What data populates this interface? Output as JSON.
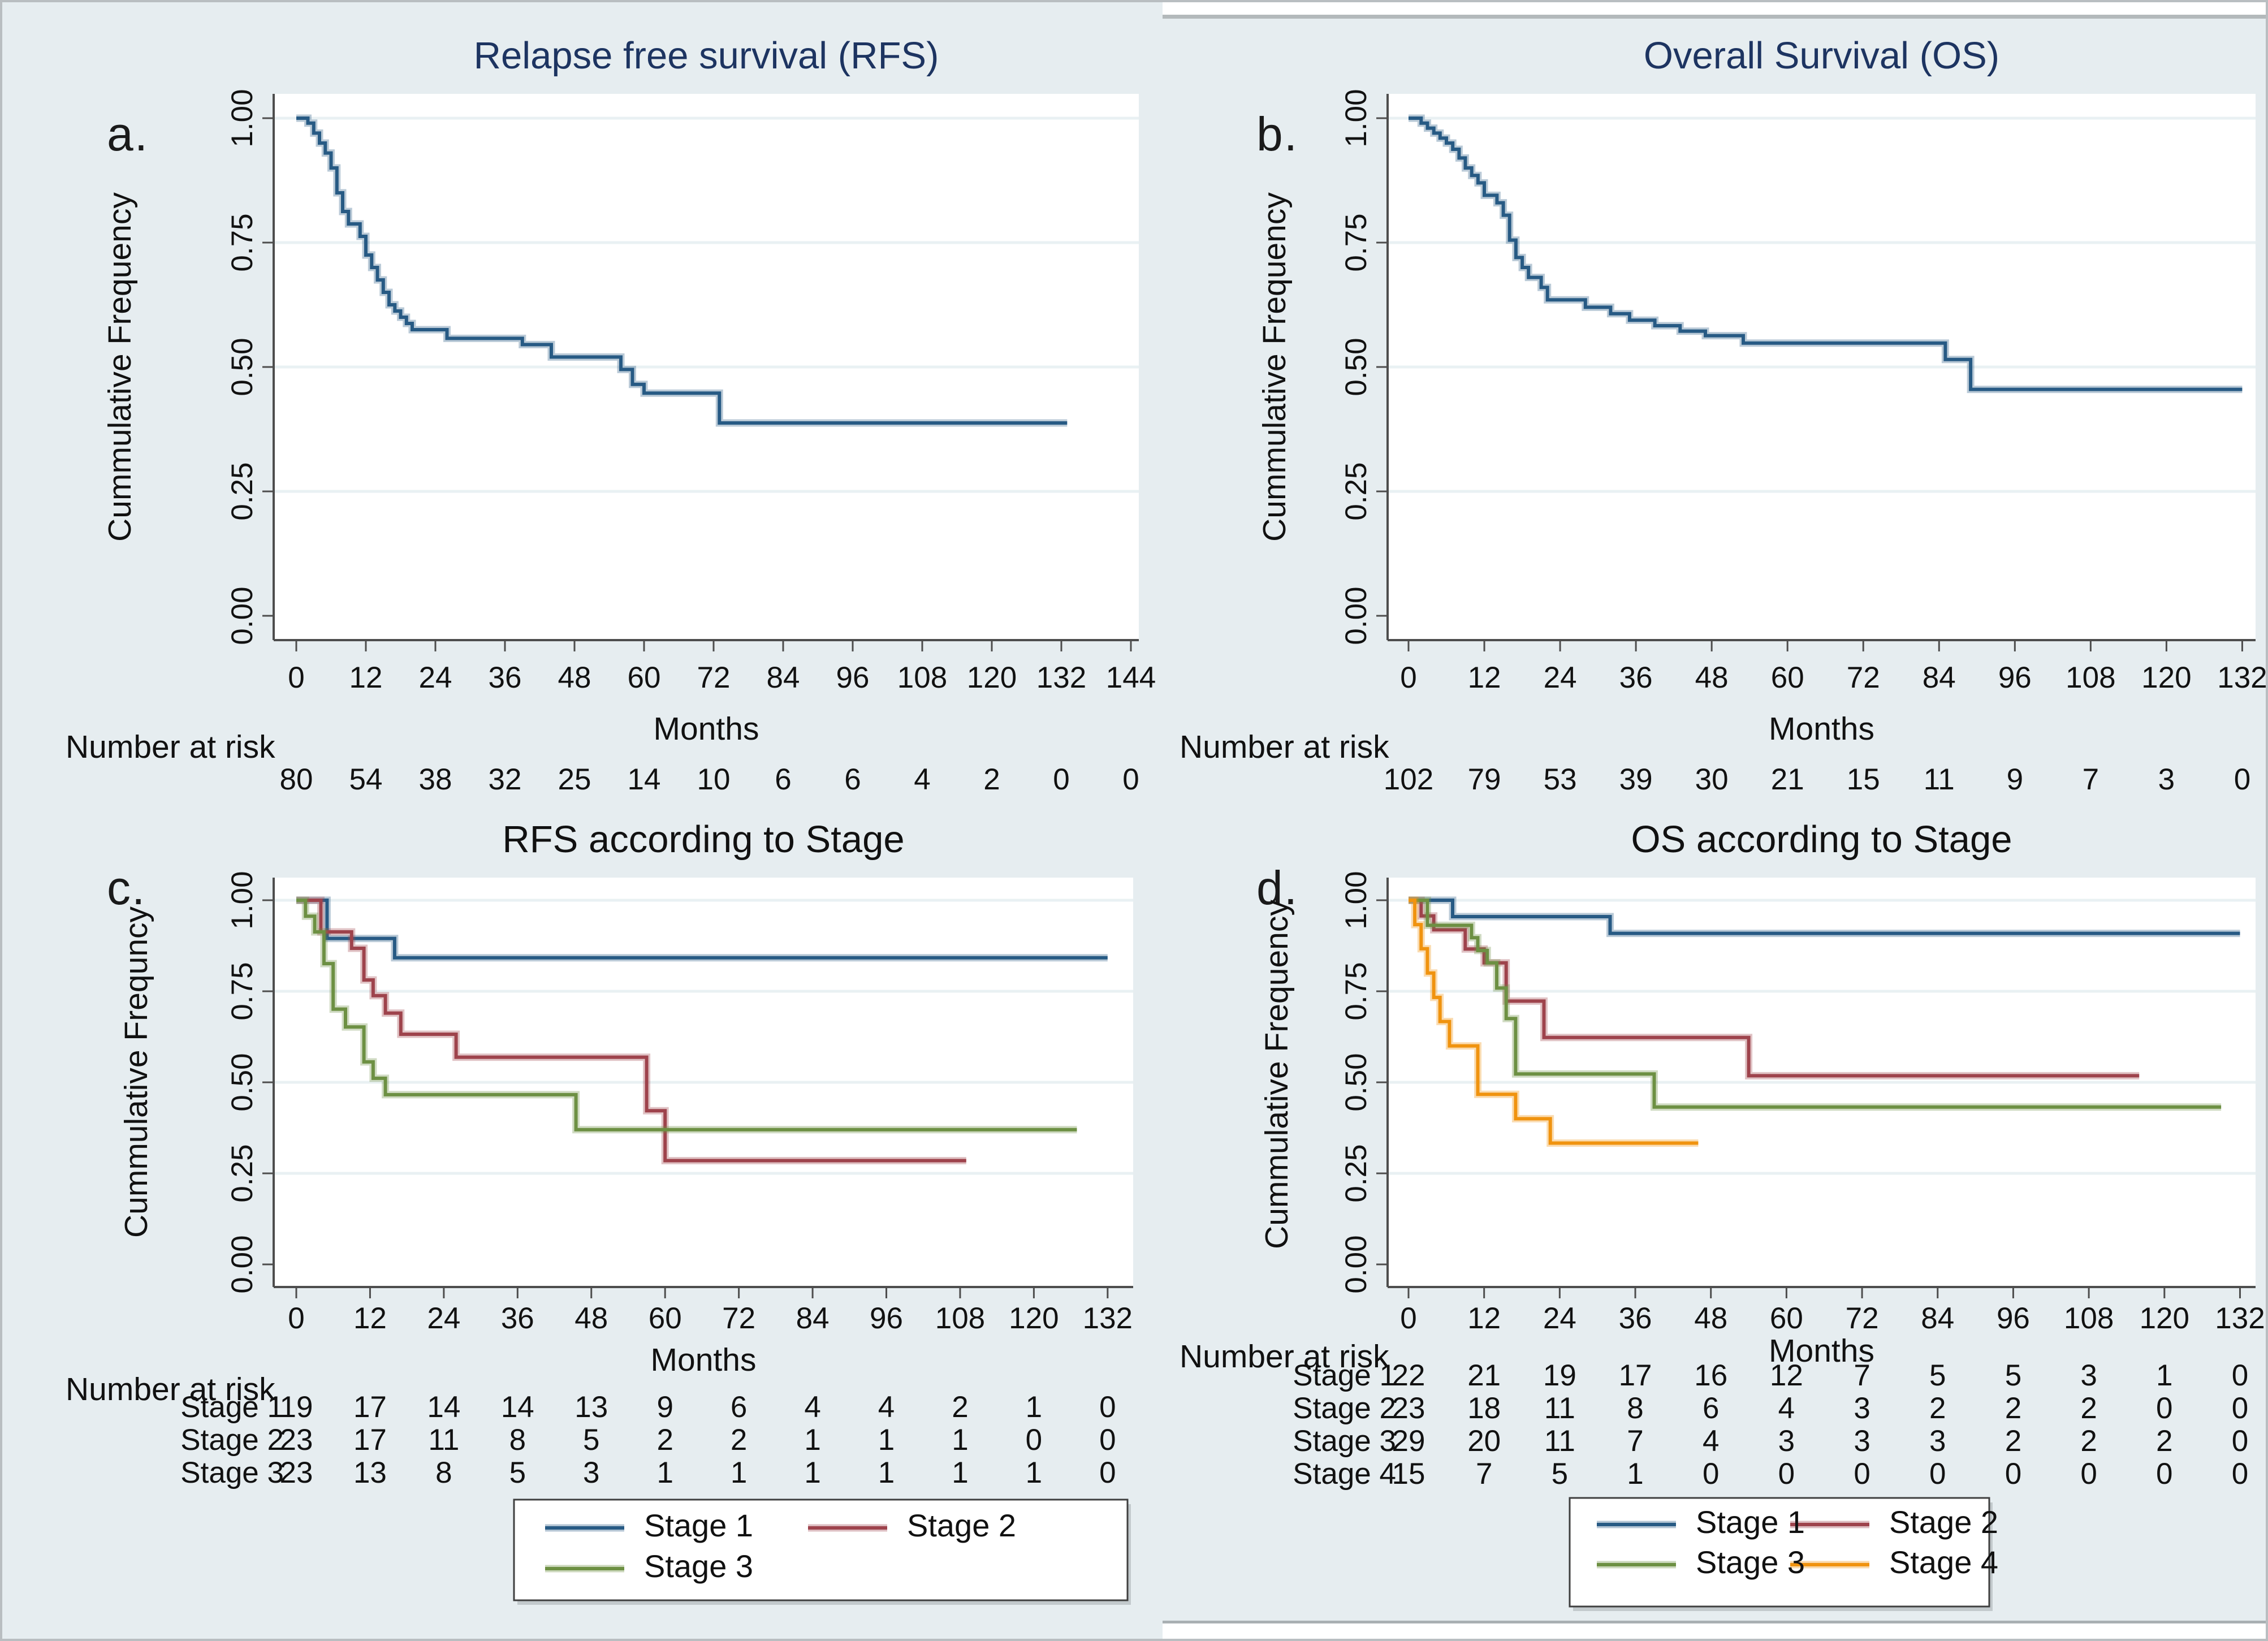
{
  "figure": {
    "background": "#e6edf0",
    "plot_background": "#ffffff",
    "gridline_color": "#e9f1f3",
    "axis_color": "#4d4d4d",
    "text_color": "#111111",
    "navy_title_color": "#1d3461"
  },
  "chart_data": [
    {
      "panel_label": "a.",
      "type": "line",
      "subtype": "kaplan-meier-step",
      "title": "Relapse free survival (RFS)",
      "title_color": "#1d3461",
      "xlabel": "Months",
      "ylabel": "Cummulative Frequency",
      "xlim": [
        0,
        144
      ],
      "ylim": [
        0,
        1
      ],
      "xticks": [
        0,
        12,
        24,
        36,
        48,
        60,
        72,
        84,
        96,
        108,
        120,
        132,
        144
      ],
      "yticks": [
        "0.00",
        "0.25",
        "0.50",
        "0.75",
        "1.00"
      ],
      "grid": "horizontal",
      "legend": null,
      "number_at_risk_label": "Number at risk",
      "at_risk": [
        {
          "label": "",
          "values": [
            80,
            54,
            38,
            32,
            25,
            14,
            10,
            6,
            6,
            4,
            2,
            0,
            0
          ]
        }
      ],
      "series": [
        {
          "name": "RFS",
          "color": "#275a84",
          "points": [
            [
              0,
              1.0
            ],
            [
              2,
              0.99
            ],
            [
              3,
              0.97
            ],
            [
              4,
              0.95
            ],
            [
              5,
              0.93
            ],
            [
              6,
              0.9
            ],
            [
              7,
              0.85
            ],
            [
              8,
              0.8125
            ],
            [
              9,
              0.7875
            ],
            [
              11,
              0.7625
            ],
            [
              12,
              0.725
            ],
            [
              13,
              0.7
            ],
            [
              14,
              0.675
            ],
            [
              15,
              0.65
            ],
            [
              16,
              0.625
            ],
            [
              17,
              0.6125
            ],
            [
              18,
              0.6
            ],
            [
              19,
              0.5875
            ],
            [
              20,
              0.575
            ],
            [
              26,
              0.5575
            ],
            [
              39,
              0.545
            ],
            [
              44,
              0.52
            ],
            [
              56,
              0.495
            ],
            [
              58,
              0.465
            ],
            [
              60,
              0.4475
            ],
            [
              73,
              0.3875
            ],
            [
              133,
              0.3875
            ]
          ]
        }
      ]
    },
    {
      "panel_label": "b.",
      "type": "line",
      "subtype": "kaplan-meier-step",
      "title": "Overall Survival (OS)",
      "title_color": "#1d3461",
      "xlabel": "Months",
      "ylabel": "Cummulative Frequency",
      "xlim": [
        0,
        132
      ],
      "ylim": [
        0,
        1
      ],
      "xticks": [
        0,
        12,
        24,
        36,
        48,
        60,
        72,
        84,
        96,
        108,
        120,
        132
      ],
      "yticks": [
        "0.00",
        "0.25",
        "0.50",
        "0.75",
        "1.00"
      ],
      "grid": "horizontal",
      "legend": null,
      "number_at_risk_label": "Number at risk",
      "at_risk": [
        {
          "label": "",
          "values": [
            102,
            79,
            53,
            39,
            30,
            21,
            15,
            11,
            9,
            7,
            3,
            0
          ]
        }
      ],
      "series": [
        {
          "name": "OS",
          "color": "#275a84",
          "points": [
            [
              0,
              1.0
            ],
            [
              2,
              0.99
            ],
            [
              3,
              0.98
            ],
            [
              4,
              0.97
            ],
            [
              5,
              0.96
            ],
            [
              6,
              0.95
            ],
            [
              7,
              0.9375
            ],
            [
              8,
              0.92
            ],
            [
              9,
              0.9
            ],
            [
              10,
              0.885
            ],
            [
              11,
              0.87
            ],
            [
              12,
              0.845
            ],
            [
              14,
              0.83
            ],
            [
              15,
              0.805
            ],
            [
              16,
              0.755
            ],
            [
              17,
              0.72
            ],
            [
              18,
              0.7
            ],
            [
              19,
              0.68
            ],
            [
              21,
              0.66
            ],
            [
              22,
              0.635
            ],
            [
              28,
              0.62
            ],
            [
              32,
              0.607
            ],
            [
              35,
              0.594
            ],
            [
              39,
              0.583
            ],
            [
              43,
              0.572
            ],
            [
              47,
              0.563
            ],
            [
              53,
              0.548
            ],
            [
              85,
              0.515
            ],
            [
              89,
              0.455
            ],
            [
              132,
              0.455
            ]
          ]
        }
      ]
    },
    {
      "panel_label": "c.",
      "type": "line",
      "subtype": "kaplan-meier-step",
      "title": "RFS according to Stage",
      "title_color": "#111111",
      "xlabel": "Months",
      "ylabel": "Cummulative Frequncy",
      "xlim": [
        0,
        132
      ],
      "ylim": [
        0,
        1
      ],
      "xticks": [
        0,
        12,
        24,
        36,
        48,
        60,
        72,
        84,
        96,
        108,
        120,
        132
      ],
      "yticks": [
        "0.00",
        "0.25",
        "0.50",
        "0.75",
        "1.00"
      ],
      "grid": "horizontal",
      "legend": {
        "position": "bottom",
        "entries": [
          {
            "label": "Stage 1",
            "color": "#275a84"
          },
          {
            "label": "Stage 2",
            "color": "#9e434c"
          },
          {
            "label": "Stage 3",
            "color": "#6d9043"
          }
        ]
      },
      "number_at_risk_label": "Number at risk",
      "at_risk": [
        {
          "label": "Stage 1",
          "values": [
            19,
            17,
            14,
            14,
            13,
            9,
            6,
            4,
            4,
            2,
            1,
            0
          ]
        },
        {
          "label": "Stage 2",
          "values": [
            23,
            17,
            11,
            8,
            5,
            2,
            2,
            1,
            1,
            1,
            0,
            0
          ]
        },
        {
          "label": "Stage 3",
          "values": [
            23,
            13,
            8,
            5,
            3,
            1,
            1,
            1,
            1,
            1,
            1,
            0
          ]
        }
      ],
      "series": [
        {
          "name": "Stage 1",
          "color": "#275a84",
          "points": [
            [
              0,
              1.0
            ],
            [
              5,
              0.895
            ],
            [
              16,
              0.842
            ],
            [
              132,
              0.842
            ]
          ]
        },
        {
          "name": "Stage 2",
          "color": "#9e434c",
          "points": [
            [
              0,
              1.0
            ],
            [
              4,
              0.913
            ],
            [
              9,
              0.868
            ],
            [
              11,
              0.781
            ],
            [
              12.5,
              0.738
            ],
            [
              14.5,
              0.69
            ],
            [
              17,
              0.632
            ],
            [
              26,
              0.569
            ],
            [
              57,
              0.422
            ],
            [
              60,
              0.285
            ],
            [
              109,
              0.285
            ]
          ]
        },
        {
          "name": "Stage 3",
          "color": "#6d9043",
          "points": [
            [
              0,
              1.0
            ],
            [
              1.5,
              0.956
            ],
            [
              3,
              0.913
            ],
            [
              4.5,
              0.826
            ],
            [
              6,
              0.701
            ],
            [
              8,
              0.652
            ],
            [
              11,
              0.556
            ],
            [
              12.5,
              0.511
            ],
            [
              14.5,
              0.466
            ],
            [
              45.5,
              0.37
            ],
            [
              127,
              0.37
            ]
          ]
        }
      ]
    },
    {
      "panel_label": "d.",
      "type": "line",
      "subtype": "kaplan-meier-step",
      "title": "OS according to Stage",
      "title_color": "#111111",
      "xlabel": "Months",
      "ylabel": "Cummulative Frequency",
      "xlim": [
        0,
        132
      ],
      "ylim": [
        0,
        1
      ],
      "xticks": [
        0,
        12,
        24,
        36,
        48,
        60,
        72,
        84,
        96,
        108,
        120,
        132
      ],
      "yticks": [
        "0.00",
        "0.25",
        "0.50",
        "0.75",
        "1.00"
      ],
      "grid": "horizontal",
      "legend": {
        "position": "bottom",
        "entries": [
          {
            "label": "Stage 1",
            "color": "#275a84"
          },
          {
            "label": "Stage 2",
            "color": "#9e434c"
          },
          {
            "label": "Stage 3",
            "color": "#6d9043"
          },
          {
            "label": "Stage 4",
            "color": "#f0930f"
          }
        ]
      },
      "number_at_risk_label": "Number at risk",
      "at_risk": [
        {
          "label": "Stage 1",
          "values": [
            22,
            21,
            19,
            17,
            16,
            12,
            7,
            5,
            5,
            3,
            1,
            0
          ]
        },
        {
          "label": "Stage 2",
          "values": [
            23,
            18,
            11,
            8,
            6,
            4,
            3,
            2,
            2,
            2,
            0,
            0
          ]
        },
        {
          "label": "Stage 3",
          "values": [
            29,
            20,
            11,
            7,
            4,
            3,
            3,
            3,
            2,
            2,
            2,
            0
          ]
        },
        {
          "label": "Stage 4",
          "values": [
            15,
            7,
            5,
            1,
            0,
            0,
            0,
            0,
            0,
            0,
            0,
            0
          ]
        }
      ],
      "series": [
        {
          "name": "Stage 1",
          "color": "#275a84",
          "points": [
            [
              0,
              1.0
            ],
            [
              7,
              0.955
            ],
            [
              32,
              0.909
            ],
            [
              132,
              0.909
            ]
          ]
        },
        {
          "name": "Stage 2",
          "color": "#9e434c",
          "points": [
            [
              0,
              1.0
            ],
            [
              2,
              0.957
            ],
            [
              4,
              0.919
            ],
            [
              9,
              0.866
            ],
            [
              12,
              0.828
            ],
            [
              15.5,
              0.723
            ],
            [
              21.5,
              0.623
            ],
            [
              54,
              0.518
            ],
            [
              116,
              0.518
            ]
          ]
        },
        {
          "name": "Stage 3",
          "color": "#6d9043",
          "points": [
            [
              0,
              1.0
            ],
            [
              3,
              0.931
            ],
            [
              10,
              0.897
            ],
            [
              11,
              0.862
            ],
            [
              12.5,
              0.828
            ],
            [
              14,
              0.759
            ],
            [
              15.5,
              0.675
            ],
            [
              17,
              0.523
            ],
            [
              39,
              0.432
            ],
            [
              129,
              0.432
            ]
          ]
        },
        {
          "name": "Stage 4",
          "color": "#f0930f",
          "points": [
            [
              0,
              1.0
            ],
            [
              1,
              0.933
            ],
            [
              2,
              0.867
            ],
            [
              3,
              0.8
            ],
            [
              4,
              0.733
            ],
            [
              5,
              0.667
            ],
            [
              6.5,
              0.6
            ],
            [
              11,
              0.467
            ],
            [
              17,
              0.4
            ],
            [
              22.5,
              0.333
            ],
            [
              46,
              0.333
            ]
          ]
        }
      ]
    }
  ]
}
